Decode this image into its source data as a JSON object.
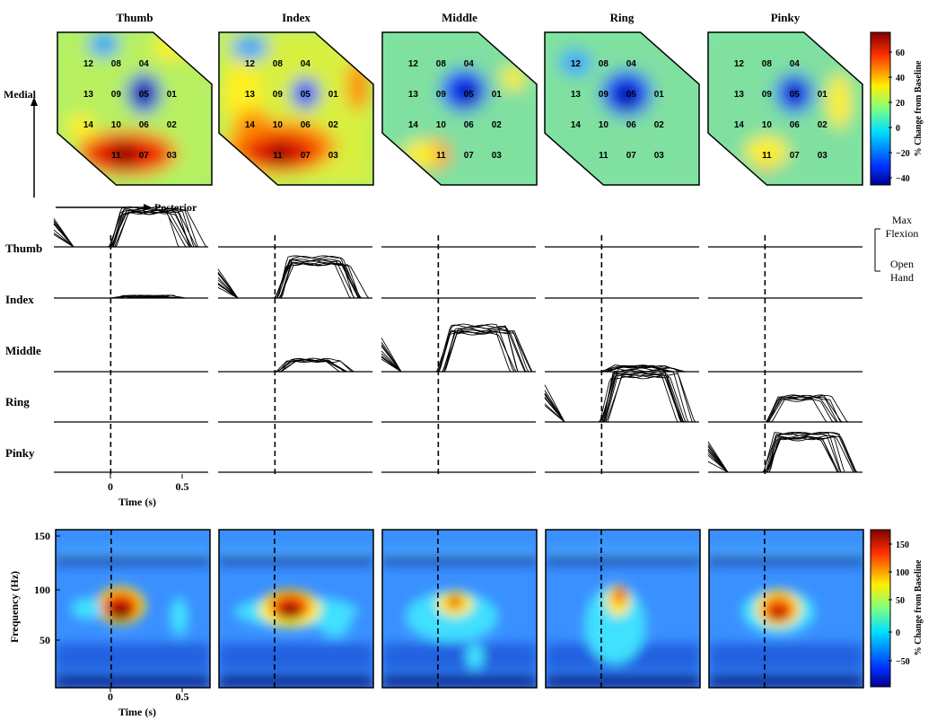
{
  "fingers": [
    "Thumb",
    "Index",
    "Middle",
    "Ring",
    "Pinky"
  ],
  "electrodes": [
    {
      "id": "12",
      "row": 0,
      "col": 0
    },
    {
      "id": "08",
      "row": 0,
      "col": 1
    },
    {
      "id": "04",
      "row": 0,
      "col": 2
    },
    {
      "id": "13",
      "row": 1,
      "col": 0
    },
    {
      "id": "09",
      "row": 1,
      "col": 1
    },
    {
      "id": "05",
      "row": 1,
      "col": 2
    },
    {
      "id": "01",
      "row": 1,
      "col": 3
    },
    {
      "id": "14",
      "row": 2,
      "col": 0
    },
    {
      "id": "10",
      "row": 2,
      "col": 1
    },
    {
      "id": "06",
      "row": 2,
      "col": 2
    },
    {
      "id": "02",
      "row": 2,
      "col": 3
    },
    {
      "id": "11",
      "row": 3,
      "col": 1
    },
    {
      "id": "07",
      "row": 3,
      "col": 2
    },
    {
      "id": "03",
      "row": 3,
      "col": 3
    }
  ],
  "axes_arrows": {
    "medial": "Medial",
    "posterior": "Posterior"
  },
  "topo_colorbar": {
    "label": "% Change from Baseline",
    "ticks": [
      "60",
      "40",
      "20",
      "0",
      "−20",
      "−40"
    ]
  },
  "spec_colorbar": {
    "label": "% Change from Baseline",
    "ticks": [
      "150",
      "100",
      "50",
      "0",
      "−50"
    ]
  },
  "kinematics_legend": {
    "top": "Max Flexion",
    "bottom": "Open Hand"
  },
  "time_axis": {
    "label": "Time (s)",
    "ticks": [
      "0",
      "0.5"
    ]
  },
  "freq_axis": {
    "label": "Frequency (Hz)",
    "ticks": [
      "150",
      "100",
      "50"
    ]
  },
  "colors": {
    "colormap": [
      "#00008f",
      "#0050ff",
      "#00dfff",
      "#7fff7f",
      "#ffef00",
      "#ff6000",
      "#bf0000",
      "#800000"
    ],
    "trace": "#000000",
    "frame": "#000000"
  }
}
